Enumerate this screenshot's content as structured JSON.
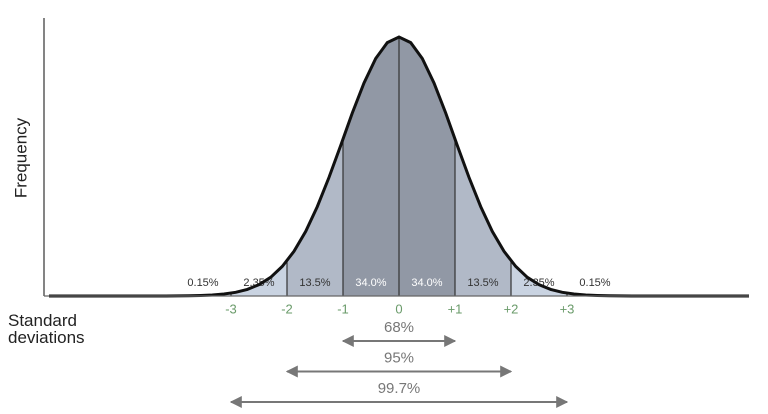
{
  "chart_data": {
    "type": "normal-curve",
    "y_label": "Frequency",
    "x_label": "Standard deviations",
    "xlim": [
      -6.25,
      6.25
    ],
    "xticks": [
      {
        "value": -3,
        "label": "-3"
      },
      {
        "value": -2,
        "label": "-2"
      },
      {
        "value": -1,
        "label": "-1"
      },
      0,
      {
        "value": 1,
        "label": "+1"
      },
      {
        "value": 2,
        "label": "+2"
      },
      {
        "value": 3,
        "label": "+3"
      }
    ],
    "values": [
      0.15,
      2.35,
      13.5,
      34.0,
      34.0,
      13.5,
      2.35,
      0.15
    ],
    "value_labels": [
      "0.15%",
      "2.35%",
      "13.5%",
      "34.0%",
      "34.0%",
      "13.5%",
      "2.35%",
      "0.15%"
    ],
    "colors": [
      "#dfe9f4",
      "#c9d3e1",
      "#b1b9c7",
      "#9198a5",
      "#9198a5",
      "#b1b9c7",
      "#c9d3e1",
      "#dfe9f4"
    ],
    "ranges": [
      {
        "label": "68%",
        "span": [
          -1,
          1
        ]
      },
      {
        "label": "95%",
        "span": [
          -2,
          2
        ]
      },
      {
        "label": "99.7%",
        "span": [
          -3,
          3
        ]
      }
    ]
  }
}
